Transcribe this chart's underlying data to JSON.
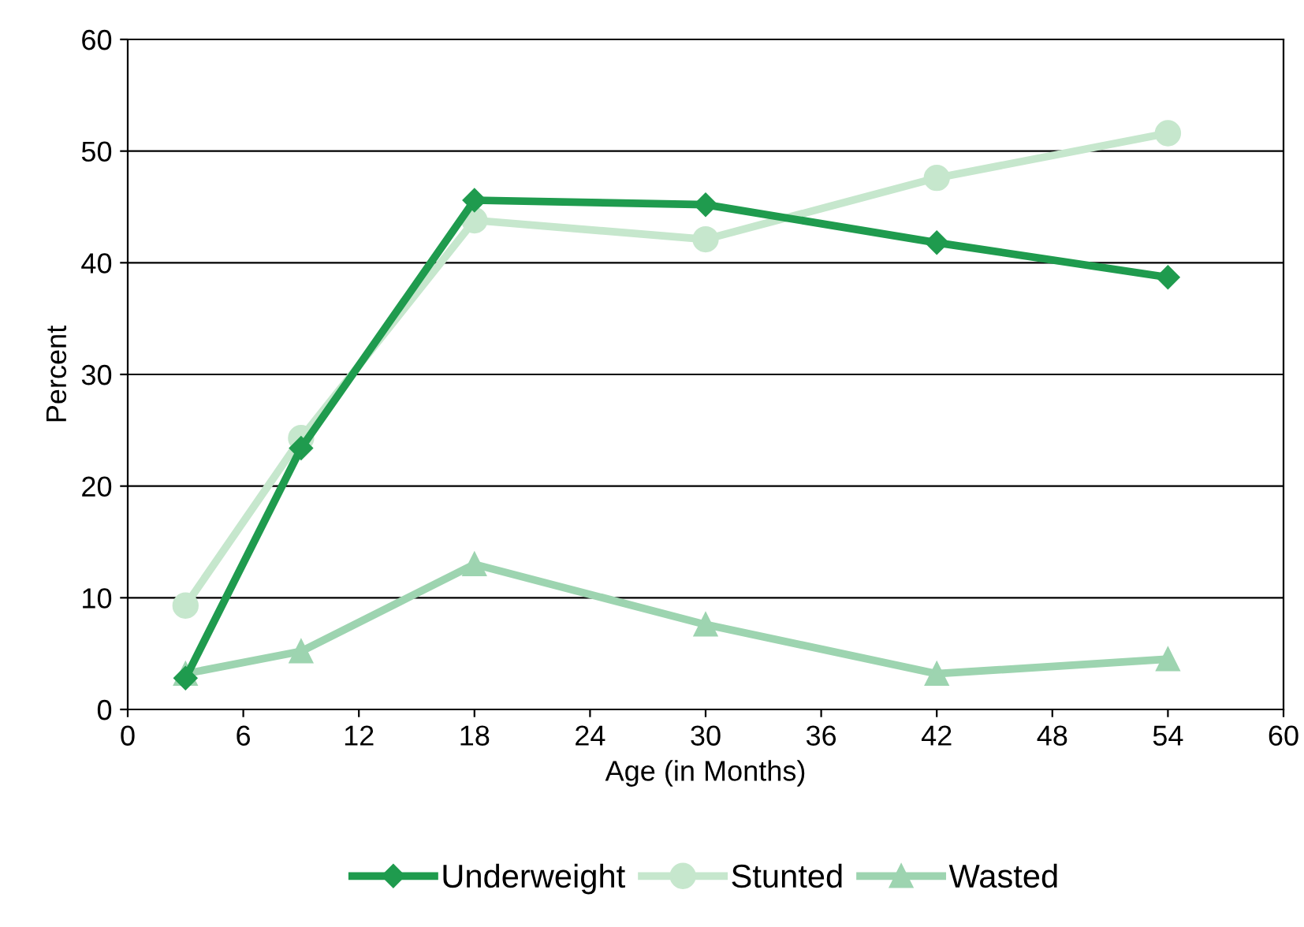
{
  "chart_data": {
    "type": "line",
    "xlabel": "Age (in Months)",
    "ylabel": "Percent",
    "x": [
      3,
      9,
      18,
      30,
      42,
      54
    ],
    "series": [
      {
        "name": "Underweight",
        "color": "#1f9b4e",
        "marker": "diamond",
        "values": [
          2.8,
          23.4,
          45.6,
          45.2,
          41.8,
          38.7
        ]
      },
      {
        "name": "Stunted",
        "color": "#c6e7cd",
        "marker": "circle",
        "values": [
          9.3,
          24.3,
          43.8,
          42.1,
          47.6,
          51.6
        ]
      },
      {
        "name": "Wasted",
        "color": "#9dd4b0",
        "marker": "triangle",
        "values": [
          3.2,
          5.2,
          13.0,
          7.6,
          3.2,
          4.5
        ]
      }
    ],
    "xlim": [
      0,
      60
    ],
    "xticks": [
      0,
      6,
      12,
      18,
      24,
      30,
      36,
      42,
      48,
      54,
      60
    ],
    "ylim": [
      0,
      60
    ],
    "yticks": [
      0,
      10,
      20,
      30,
      40,
      50,
      60
    ],
    "grid": "y",
    "legend": "bottom",
    "line_style": "solid"
  }
}
